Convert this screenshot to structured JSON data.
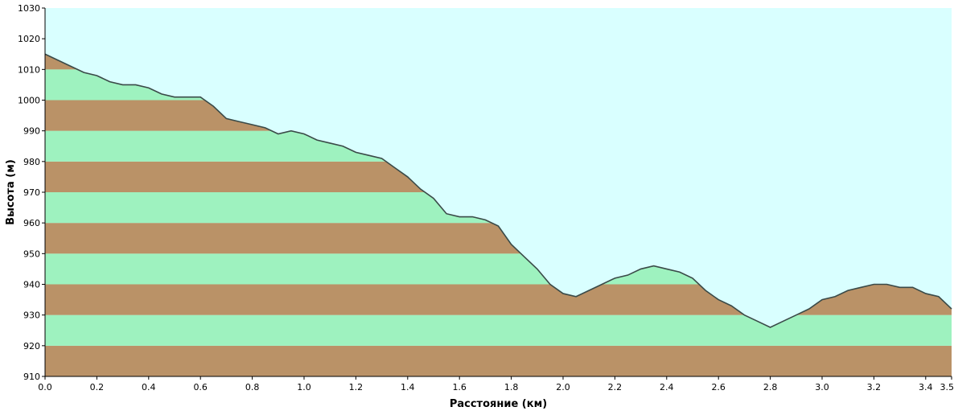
{
  "colors": {
    "sky": "#d9ffff",
    "band_green": "#9ef2bf",
    "band_brown": "#ba9267",
    "profile_line": "#3a4a48",
    "axis": "#000000"
  },
  "chart_data": {
    "type": "area",
    "xlabel": "Расстояние  (км)",
    "ylabel": "Высота (м)",
    "xlim": [
      0.0,
      3.5
    ],
    "ylim": [
      910,
      1030
    ],
    "x_ticks": [
      "0.0",
      "0.2",
      "0.4",
      "0.6",
      "0.8",
      "1.0",
      "1.2",
      "1.4",
      "1.6",
      "1.8",
      "2.0",
      "2.2",
      "2.4",
      "2.6",
      "2.8",
      "3.0",
      "3.2",
      "3.4",
      "3.5"
    ],
    "y_ticks": [
      "910",
      "920",
      "930",
      "940",
      "950",
      "960",
      "970",
      "980",
      "990",
      "1000",
      "1010",
      "1020",
      "1030"
    ],
    "bands_step": 10,
    "grid": false,
    "series": [
      {
        "x": [
          0.0,
          0.05,
          0.1,
          0.15,
          0.2,
          0.25,
          0.3,
          0.35,
          0.4,
          0.45,
          0.5,
          0.55,
          0.6,
          0.65,
          0.7,
          0.75,
          0.8,
          0.85,
          0.9,
          0.95,
          1.0,
          1.05,
          1.1,
          1.15,
          1.2,
          1.25,
          1.3,
          1.35,
          1.4,
          1.45,
          1.5,
          1.55,
          1.6,
          1.65,
          1.7,
          1.75,
          1.8,
          1.85,
          1.9,
          1.95,
          2.0,
          2.05,
          2.1,
          2.15,
          2.2,
          2.25,
          2.3,
          2.35,
          2.4,
          2.45,
          2.5,
          2.55,
          2.6,
          2.65,
          2.7,
          2.75,
          2.8,
          2.85,
          2.9,
          2.95,
          3.0,
          3.05,
          3.1,
          3.15,
          3.2,
          3.25,
          3.3,
          3.35,
          3.4,
          3.45,
          3.5
        ],
        "y": [
          1015,
          1013,
          1011,
          1009,
          1008,
          1006,
          1005,
          1005,
          1004,
          1002,
          1001,
          1001,
          1001,
          998,
          994,
          993,
          992,
          991,
          989,
          990,
          989,
          987,
          986,
          985,
          983,
          982,
          981,
          978,
          975,
          971,
          968,
          963,
          962,
          962,
          961,
          959,
          953,
          949,
          945,
          940,
          937,
          936,
          938,
          940,
          942,
          943,
          945,
          946,
          945,
          944,
          942,
          938,
          935,
          933,
          930,
          928,
          926,
          928,
          930,
          932,
          935,
          936,
          938,
          939,
          940,
          940,
          939,
          939,
          937,
          936,
          932
        ]
      }
    ]
  }
}
